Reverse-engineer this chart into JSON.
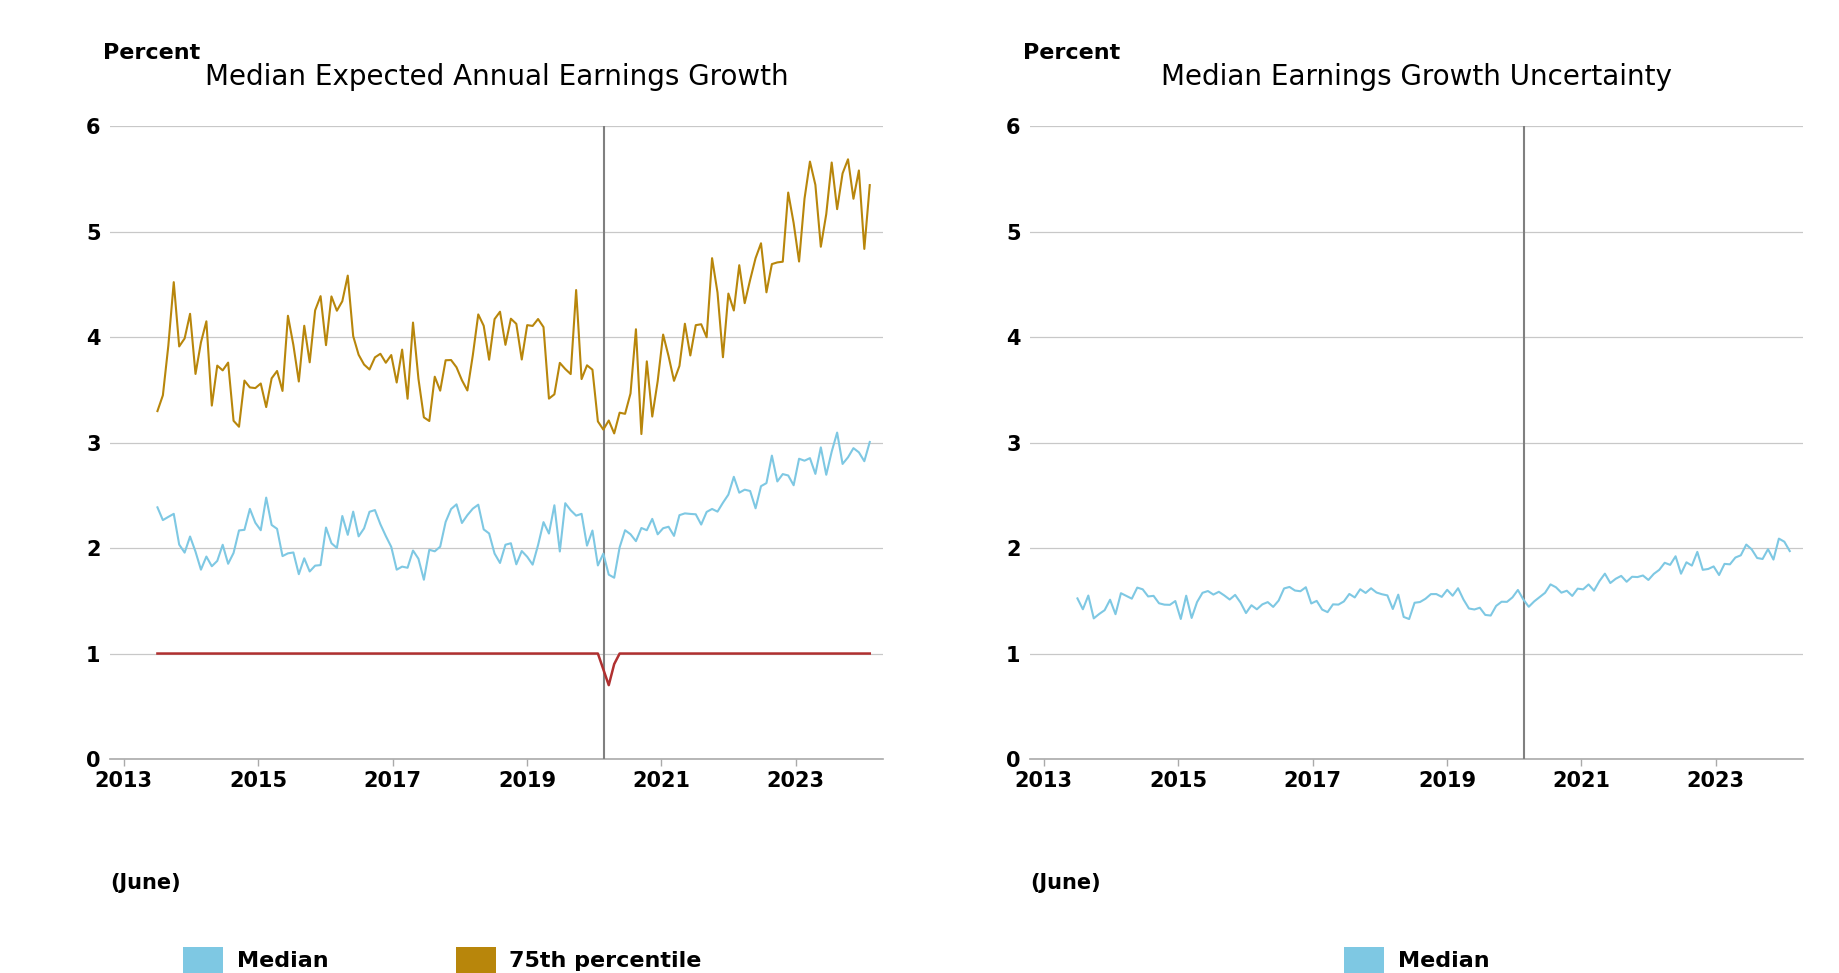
{
  "title_left": "Median Expected Annual Earnings Growth",
  "title_right": "Median Earnings Growth Uncertainty",
  "ylabel": "Percent",
  "xlabel_note": "(June)",
  "ylim": [
    0,
    6
  ],
  "yticks": [
    0,
    1,
    2,
    3,
    4,
    5,
    6
  ],
  "vline_x": 2020.15,
  "bg_color": "#ffffff",
  "grid_color": "#c8c8c8",
  "color_median": "#7ec8e3",
  "color_p25": "#b03030",
  "color_p75": "#b8860b",
  "color_median2": "#7ec8e3",
  "color_vline": "#808080",
  "title_fontsize": 20,
  "label_fontsize": 16,
  "tick_fontsize": 15,
  "legend_fontsize": 16
}
